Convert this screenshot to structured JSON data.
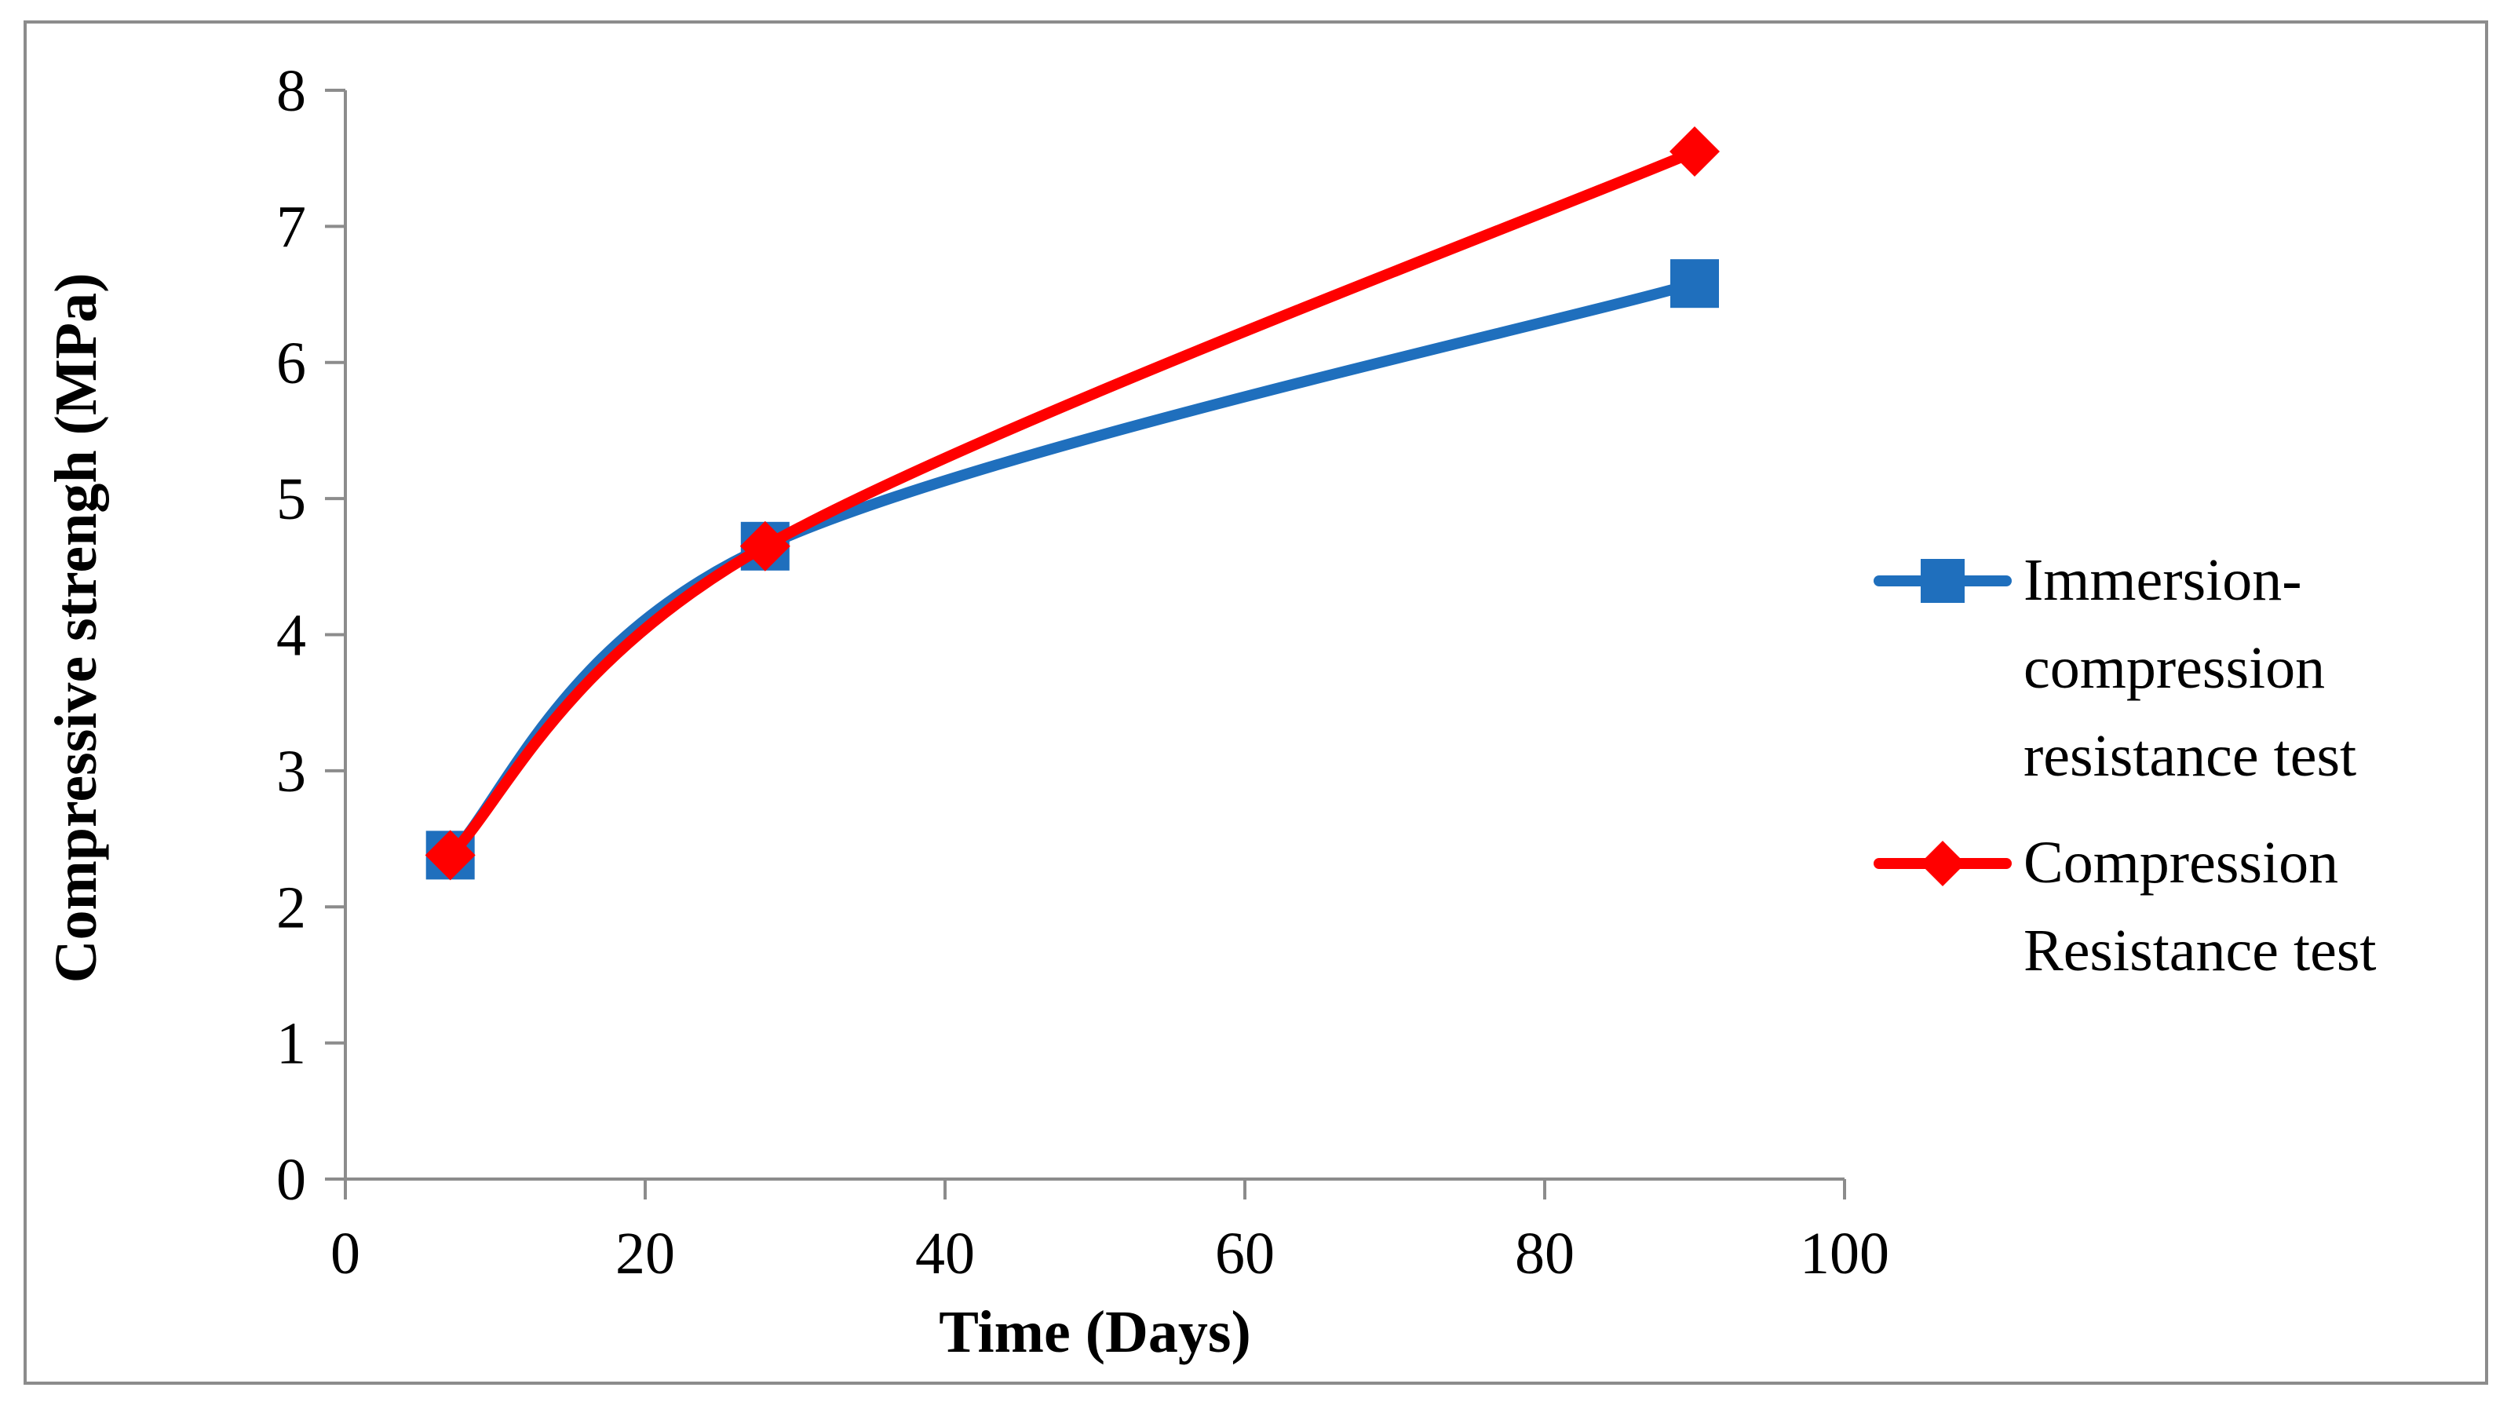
{
  "chart_data": {
    "type": "line",
    "title": "",
    "xlabel": "Time (Days)",
    "ylabel": "Compressive strengh (MPa)",
    "xlim": [
      0,
      100
    ],
    "ylim": [
      0,
      8
    ],
    "xticks": [
      0,
      20,
      40,
      60,
      80,
      100
    ],
    "yticks": [
      0,
      1,
      2,
      3,
      4,
      5,
      6,
      7,
      8
    ],
    "grid": false,
    "legend_position": "right",
    "series": [
      {
        "name": "Immersion-compression resistance test",
        "legend_lines": [
          "Immersion-",
          "compression",
          "resistance test"
        ],
        "color": "#1f6fbd",
        "marker": "square",
        "x": [
          7,
          28,
          90
        ],
        "y": [
          2.38,
          4.65,
          6.58
        ]
      },
      {
        "name": "Compression Resistance test",
        "legend_lines": [
          "Compression",
          "Resistance test"
        ],
        "color": "#ff0000",
        "marker": "diamond",
        "x": [
          7,
          28,
          90
        ],
        "y": [
          2.38,
          4.65,
          7.55
        ]
      }
    ]
  }
}
